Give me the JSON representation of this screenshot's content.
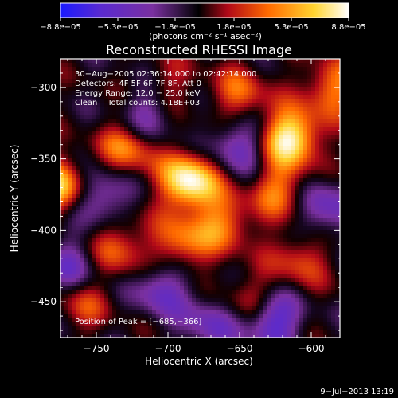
{
  "chart_data": {
    "type": "heatmap",
    "title": "Reconstructed RHESSI Image",
    "xlabel": "Heliocentric X (arcsec)",
    "ylabel": "Heliocentric Y (arcsec)",
    "xlim": [
      -775,
      -580
    ],
    "ylim": [
      -475,
      -280
    ],
    "xticks": [
      -750,
      -700,
      -650,
      -600
    ],
    "yticks": [
      -300,
      -350,
      -400,
      -450
    ],
    "xtick_labels": [
      "−750",
      "−700",
      "−650",
      "−600"
    ],
    "ytick_labels": [
      "−300",
      "−350",
      "−400",
      "−450"
    ],
    "colorbar": {
      "ticks": [
        -8.8e-05,
        -5.3e-05,
        -1.8e-05,
        1.8e-05,
        5.3e-05,
        8.8e-05
      ],
      "tick_labels": [
        "−8.8e−05",
        "−5.3e−05",
        "−1.8e−05",
        "1.8e−05",
        "5.3e−05",
        "8.8e−05"
      ],
      "label": "(photons cm⁻² s⁻¹ asec⁻²)",
      "colors": [
        "#1a1aff",
        "#5a2ad0",
        "#7a30a0",
        "#000000",
        "#d01010",
        "#ff8000",
        "#ffe040",
        "#ffffff"
      ]
    },
    "annotations": [
      "30−Aug−2005 02:36:14.000 to 02:42:14.000",
      "Detectors: 4F 5F 6F 7F 8F, Att 0",
      "Energy Range: 12.0 − 25.0 keV",
      "Clean    Total counts: 4.18E+03"
    ],
    "peak_label": "Position of Peak = [−685,−366]",
    "peak": [
      -685,
      -366
    ],
    "bright_sources": [
      {
        "x": -685,
        "y": -366,
        "v": 1.0
      },
      {
        "x": -614,
        "y": -335,
        "v": 0.95
      },
      {
        "x": -775,
        "y": -370,
        "v": 0.8
      },
      {
        "x": -728,
        "y": -342,
        "v": 0.55
      },
      {
        "x": -650,
        "y": -305,
        "v": 0.45
      },
      {
        "x": -622,
        "y": -372,
        "v": 0.5
      },
      {
        "x": -690,
        "y": -410,
        "v": 0.55
      },
      {
        "x": -735,
        "y": -412,
        "v": 0.5
      },
      {
        "x": -660,
        "y": -395,
        "v": 0.5
      },
      {
        "x": -642,
        "y": -450,
        "v": 0.45
      },
      {
        "x": -585,
        "y": -300,
        "v": 0.55
      },
      {
        "x": -758,
        "y": -450,
        "v": 0.35
      },
      {
        "x": -700,
        "y": -300,
        "v": 0.3
      },
      {
        "x": -608,
        "y": -420,
        "v": 0.4
      }
    ],
    "dark_sources": [
      {
        "x": -748,
        "y": -377,
        "v": -0.55
      },
      {
        "x": -713,
        "y": -318,
        "v": -0.45
      },
      {
        "x": -652,
        "y": -340,
        "v": -0.5
      },
      {
        "x": -628,
        "y": -462,
        "v": -0.75
      },
      {
        "x": -765,
        "y": -425,
        "v": -0.45
      },
      {
        "x": -705,
        "y": -440,
        "v": -0.5
      },
      {
        "x": -590,
        "y": -385,
        "v": -0.5
      },
      {
        "x": -670,
        "y": -465,
        "v": -0.45
      }
    ]
  },
  "footer": {
    "date": "9−Jul−2013 13:19"
  }
}
